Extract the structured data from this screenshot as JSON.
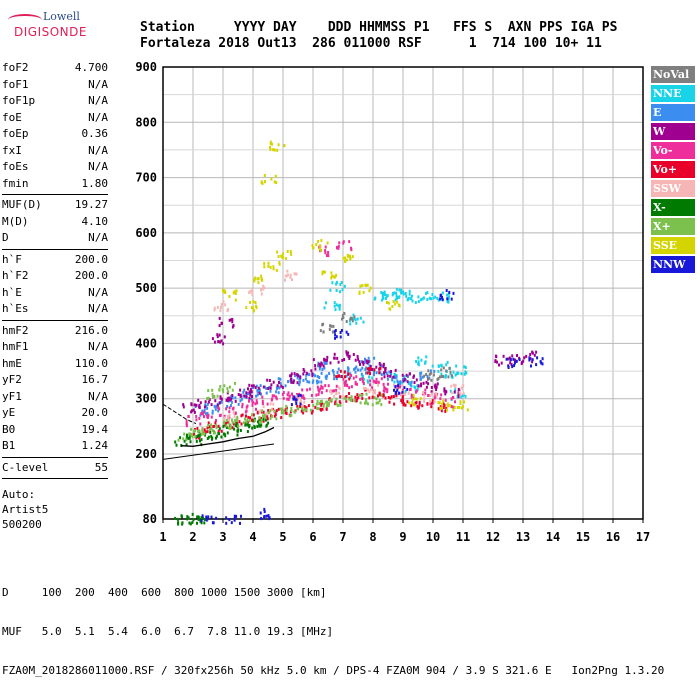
{
  "logo": {
    "line1": "Lowell",
    "line2": "DIGISONDE"
  },
  "header": {
    "keys": "Station     YYYY DAY    DDD HHMMSS P1   FFS S  AXN PPS IGA PS",
    "values": "Fortaleza 2018 Out13  286 011000 RSF      1  714 100 10+ 11"
  },
  "params": {
    "group1": [
      {
        "k": "foF2",
        "v": "4.700"
      },
      {
        "k": "foF1",
        "v": "N/A"
      },
      {
        "k": "foF1p",
        "v": "N/A"
      },
      {
        "k": "foE",
        "v": "N/A"
      },
      {
        "k": "foEp",
        "v": "0.36"
      },
      {
        "k": "fxI",
        "v": "N/A"
      },
      {
        "k": "foEs",
        "v": "N/A"
      },
      {
        "k": "fmin",
        "v": "1.80"
      }
    ],
    "group2": [
      {
        "k": "MUF(D)",
        "v": "19.27"
      },
      {
        "k": "M(D)",
        "v": "4.10"
      },
      {
        "k": "D",
        "v": "N/A"
      }
    ],
    "group3": [
      {
        "k": "h`F",
        "v": "200.0"
      },
      {
        "k": "h`F2",
        "v": "200.0"
      },
      {
        "k": "h`E",
        "v": "N/A"
      },
      {
        "k": "h`Es",
        "v": "N/A"
      }
    ],
    "group4": [
      {
        "k": "hmF2",
        "v": "216.0"
      },
      {
        "k": "hmF1",
        "v": "N/A"
      },
      {
        "k": "hmE",
        "v": "110.0"
      },
      {
        "k": "yF2",
        "v": "16.7"
      },
      {
        "k": "yF1",
        "v": "N/A"
      },
      {
        "k": "yE",
        "v": "20.0"
      },
      {
        "k": "B0",
        "v": "19.4"
      },
      {
        "k": "B1",
        "v": "1.24"
      }
    ],
    "group5": [
      {
        "k": "C-level",
        "v": "55"
      }
    ],
    "auto": [
      "Auto:",
      "Artist5",
      "500200"
    ]
  },
  "legend": [
    {
      "label": "NoVal",
      "bg": "#7f7f7f",
      "fg": "#ffffff"
    },
    {
      "label": "NNE",
      "bg": "#19d3e8",
      "fg": "#ffffff"
    },
    {
      "label": "E",
      "bg": "#3b8ef0",
      "fg": "#ffffff"
    },
    {
      "label": "W",
      "bg": "#a00090",
      "fg": "#ffffff"
    },
    {
      "label": "Vo-",
      "bg": "#ee2f9b",
      "fg": "#ffffff"
    },
    {
      "label": "Vo+",
      "bg": "#e8002a",
      "fg": "#ffffff"
    },
    {
      "label": "SSW",
      "bg": "#f7b6b6",
      "fg": "#ffffff"
    },
    {
      "label": "X-",
      "bg": "#007a00",
      "fg": "#ffffff"
    },
    {
      "label": "X+",
      "bg": "#7cc04e",
      "fg": "#ffffff"
    },
    {
      "label": "SSE",
      "bg": "#d4d400",
      "fg": "#ffffff"
    },
    {
      "label": "NNW",
      "bg": "#1818d8",
      "fg": "#ffffff"
    }
  ],
  "footer": {
    "line1": "D     100  200  400  600  800 1000 1500 3000 [km]",
    "line2": "MUF   5.0  5.1  5.4  6.0  6.7  7.8 11.0 19.3 [MHz]",
    "line3": "FZA0M_2018286011000.RSF / 320fx256h 50 kHz 5.0 km / DPS-4 FZA0M 904 / 3.9 S 321.6 E   Ion2Png 1.3.20"
  },
  "chart_data": {
    "type": "scatter",
    "x_ticks": [
      1,
      2,
      3,
      4,
      5,
      6,
      7,
      8,
      9,
      10,
      11,
      12,
      13,
      14,
      15,
      16,
      17
    ],
    "y_ticks": [
      80,
      200,
      300,
      400,
      500,
      600,
      700,
      800,
      900
    ],
    "xlim": [
      1,
      17
    ],
    "ylim": [
      80,
      900
    ],
    "grid": true,
    "legend_position": "right",
    "series": [
      {
        "name": "NNE",
        "color": "#19d3e8",
        "points": [
          [
            8.2,
            490
          ],
          [
            8.5,
            488
          ],
          [
            8.8,
            492
          ],
          [
            9.1,
            488
          ],
          [
            9.4,
            485
          ],
          [
            10.0,
            490
          ],
          [
            10.4,
            485
          ],
          [
            7.4,
            445
          ],
          [
            8.9,
            340
          ],
          [
            9.6,
            370
          ],
          [
            10.2,
            360
          ],
          [
            10.5,
            350
          ],
          [
            10.9,
            355
          ],
          [
            7.8,
            335
          ],
          [
            9.3,
            325
          ],
          [
            10.8,
            310
          ],
          [
            6.6,
            470
          ],
          [
            6.8,
            505
          ]
        ]
      },
      {
        "name": "E",
        "color": "#3b8ef0",
        "points": [
          [
            3.5,
            300
          ],
          [
            3.9,
            310
          ],
          [
            4.2,
            318
          ],
          [
            4.6,
            322
          ],
          [
            5.0,
            330
          ],
          [
            5.4,
            336
          ],
          [
            5.8,
            338
          ],
          [
            6.2,
            340
          ],
          [
            6.6,
            345
          ],
          [
            7.0,
            350
          ],
          [
            7.5,
            353
          ],
          [
            8.0,
            355
          ],
          [
            8.5,
            345
          ],
          [
            9.0,
            335
          ],
          [
            3.0,
            295
          ],
          [
            2.6,
            285
          ],
          [
            2.2,
            280
          ],
          [
            6.4,
            362
          ],
          [
            7.8,
            370
          ],
          [
            9.8,
            345
          ]
        ]
      },
      {
        "name": "W",
        "color": "#a00090",
        "points": [
          [
            1.9,
            285
          ],
          [
            2.4,
            292
          ],
          [
            2.9,
            298
          ],
          [
            3.3,
            305
          ],
          [
            3.7,
            312
          ],
          [
            4.1,
            320
          ],
          [
            4.7,
            328
          ],
          [
            5.2,
            340
          ],
          [
            5.7,
            350
          ],
          [
            6.2,
            365
          ],
          [
            6.6,
            375
          ],
          [
            7.1,
            380
          ],
          [
            7.6,
            370
          ],
          [
            8.1,
            362
          ],
          [
            8.6,
            350
          ],
          [
            9.1,
            340
          ],
          [
            9.6,
            330
          ],
          [
            10.1,
            322
          ],
          [
            10.6,
            312
          ],
          [
            12.3,
            372
          ],
          [
            12.7,
            372
          ],
          [
            13.2,
            378
          ],
          [
            2.8,
            410
          ],
          [
            3.1,
            440
          ]
        ]
      },
      {
        "name": "Vo-",
        "color": "#ee2f9b",
        "points": [
          [
            2.0,
            262
          ],
          [
            2.5,
            270
          ],
          [
            3.0,
            278
          ],
          [
            3.5,
            285
          ],
          [
            4.0,
            292
          ],
          [
            4.5,
            300
          ],
          [
            5.0,
            305
          ],
          [
            5.5,
            310
          ],
          [
            6.0,
            315
          ],
          [
            6.5,
            322
          ],
          [
            7.0,
            330
          ],
          [
            7.5,
            336
          ],
          [
            8.0,
            330
          ],
          [
            8.5,
            322
          ],
          [
            9.0,
            316
          ],
          [
            9.5,
            310
          ],
          [
            10.0,
            302
          ],
          [
            10.5,
            296
          ],
          [
            6.3,
            570
          ],
          [
            7.0,
            580
          ]
        ]
      },
      {
        "name": "Vo+",
        "color": "#e8002a",
        "points": [
          [
            2.2,
            240
          ],
          [
            2.7,
            250
          ],
          [
            3.2,
            258
          ],
          [
            3.7,
            265
          ],
          [
            4.2,
            270
          ],
          [
            4.7,
            275
          ],
          [
            5.2,
            280
          ],
          [
            5.7,
            285
          ],
          [
            6.2,
            290
          ],
          [
            6.7,
            298
          ],
          [
            7.2,
            305
          ],
          [
            7.7,
            310
          ],
          [
            8.2,
            308
          ],
          [
            8.7,
            302
          ],
          [
            9.2,
            298
          ],
          [
            9.7,
            292
          ],
          [
            10.2,
            288
          ],
          [
            7.0,
            345
          ],
          [
            8.0,
            350
          ]
        ]
      },
      {
        "name": "SSW",
        "color": "#f7b6b6",
        "points": [
          [
            3.2,
            270
          ],
          [
            4.4,
            285
          ],
          [
            5.6,
            300
          ],
          [
            6.8,
            315
          ],
          [
            7.9,
            322
          ],
          [
            8.9,
            318
          ],
          [
            9.9,
            306
          ],
          [
            10.8,
            320
          ],
          [
            2.9,
            470
          ],
          [
            4.1,
            500
          ],
          [
            5.2,
            525
          ]
        ]
      },
      {
        "name": "X-",
        "color": "#007a00",
        "points": [
          [
            1.6,
            224
          ],
          [
            2.0,
            228
          ],
          [
            2.4,
            235
          ],
          [
            2.8,
            240
          ],
          [
            3.2,
            246
          ],
          [
            3.6,
            252
          ],
          [
            4.0,
            258
          ],
          [
            4.4,
            262
          ],
          [
            1.6,
            82
          ],
          [
            1.9,
            82
          ],
          [
            2.1,
            82
          ]
        ]
      },
      {
        "name": "X+",
        "color": "#7cc04e",
        "points": [
          [
            1.7,
            232
          ],
          [
            2.1,
            240
          ],
          [
            2.5,
            248
          ],
          [
            3.0,
            256
          ],
          [
            3.5,
            262
          ],
          [
            4.0,
            268
          ],
          [
            4.5,
            274
          ],
          [
            5.0,
            280
          ],
          [
            5.5,
            285
          ],
          [
            6.0,
            290
          ],
          [
            6.5,
            294
          ],
          [
            7.0,
            298
          ],
          [
            7.5,
            302
          ],
          [
            8.0,
            300
          ],
          [
            2.6,
            312
          ],
          [
            3.1,
            324
          ]
        ]
      },
      {
        "name": "SSE",
        "color": "#d4d400",
        "points": [
          [
            3.9,
            470
          ],
          [
            4.2,
            520
          ],
          [
            4.6,
            540
          ],
          [
            5.0,
            560
          ],
          [
            6.2,
            580
          ],
          [
            6.5,
            530
          ],
          [
            7.2,
            560
          ],
          [
            7.7,
            500
          ],
          [
            8.6,
            470
          ],
          [
            9.3,
            300
          ],
          [
            10.3,
            290
          ],
          [
            10.9,
            290
          ],
          [
            4.5,
            700
          ],
          [
            4.8,
            760
          ],
          [
            3.2,
            490
          ]
        ]
      },
      {
        "name": "NNW",
        "color": "#1818d8",
        "points": [
          [
            12.6,
            368
          ],
          [
            13.4,
            370
          ],
          [
            10.4,
            490
          ],
          [
            8.9,
            320
          ],
          [
            6.9,
            420
          ],
          [
            5.5,
            300
          ],
          [
            4.4,
            92
          ],
          [
            2.5,
            82
          ],
          [
            3.3,
            82
          ]
        ]
      },
      {
        "name": "NoVal",
        "color": "#7f7f7f",
        "points": [
          [
            10.4,
            350
          ],
          [
            9.9,
            345
          ],
          [
            7.2,
            450
          ],
          [
            6.4,
            430
          ]
        ]
      }
    ],
    "trace": [
      [
        1.6,
        215
      ],
      [
        2.0,
        214
      ],
      [
        2.5,
        218
      ],
      [
        3.0,
        222
      ],
      [
        3.5,
        228
      ],
      [
        4.0,
        232
      ],
      [
        4.4,
        240
      ],
      [
        4.7,
        248
      ]
    ],
    "envelope_low": [
      [
        1.0,
        190
      ],
      [
        4.7,
        218
      ]
    ],
    "envelope_high": [
      [
        1.0,
        290
      ],
      [
        1.8,
        262
      ],
      [
        2.1,
        255
      ]
    ]
  }
}
